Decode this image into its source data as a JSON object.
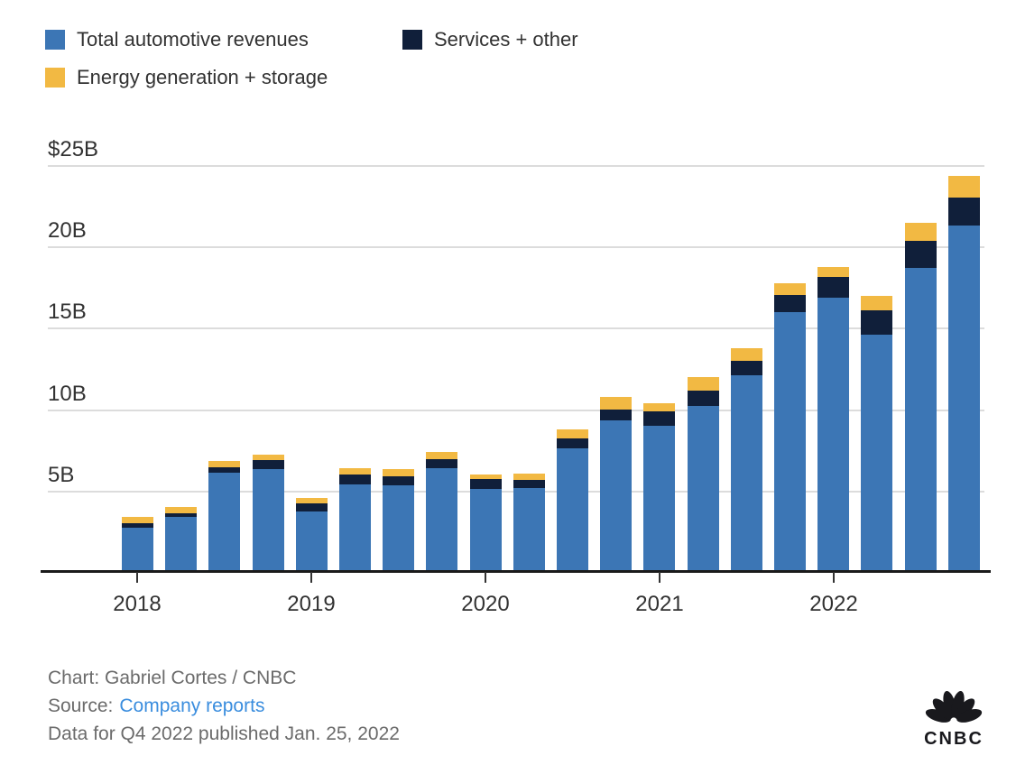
{
  "legend": {
    "items": [
      {
        "label": "Total automotive revenues",
        "color": "#3c76b5"
      },
      {
        "label": "Services + other",
        "color": "#101f3a"
      },
      {
        "label": "Energy generation + storage",
        "color": "#f2b943"
      }
    ]
  },
  "chart_data": {
    "type": "bar",
    "stacked": true,
    "unit": "USD billions",
    "categories": [
      "Q1 2018",
      "Q2 2018",
      "Q3 2018",
      "Q4 2018",
      "Q1 2019",
      "Q2 2019",
      "Q3 2019",
      "Q4 2019",
      "Q1 2020",
      "Q2 2020",
      "Q3 2020",
      "Q4 2020",
      "Q1 2021",
      "Q2 2021",
      "Q3 2021",
      "Q4 2021",
      "Q1 2022",
      "Q2 2022",
      "Q3 2022",
      "Q4 2022"
    ],
    "series": [
      {
        "name": "Total automotive revenues",
        "values": [
          2.74,
          3.36,
          6.1,
          6.32,
          3.72,
          5.38,
          5.35,
          6.37,
          5.13,
          5.18,
          7.61,
          9.31,
          9.0,
          10.21,
          12.06,
          15.97,
          16.86,
          14.6,
          18.69,
          21.31
        ]
      },
      {
        "name": "Services + other",
        "values": [
          0.26,
          0.27,
          0.33,
          0.53,
          0.49,
          0.61,
          0.55,
          0.58,
          0.56,
          0.49,
          0.58,
          0.68,
          0.89,
          0.95,
          0.89,
          1.06,
          1.28,
          1.47,
          1.65,
          1.7
        ]
      },
      {
        "name": "Energy generation + storage",
        "values": [
          0.41,
          0.37,
          0.4,
          0.37,
          0.33,
          0.37,
          0.4,
          0.44,
          0.29,
          0.37,
          0.58,
          0.75,
          0.49,
          0.8,
          0.81,
          0.69,
          0.62,
          0.87,
          1.12,
          1.31
        ]
      }
    ],
    "x_tick_labels": [
      "2018",
      "2019",
      "2020",
      "2021",
      "2022"
    ],
    "y_tick_labels": [
      "$25B",
      "20B",
      "15B",
      "10B",
      "5B"
    ],
    "ylim": [
      0,
      25
    ],
    "grid": "horizontal",
    "legend_position": "top-left"
  },
  "footer": {
    "credit": "Chart: Gabriel Cortes / CNBC",
    "source_label": "Source:",
    "source_link": "Company reports",
    "note": "Data for Q4 2022 published Jan. 25, 2022"
  },
  "logo": {
    "text": "CNBC"
  },
  "colors": {
    "automotive": "#3c76b5",
    "services": "#101f3a",
    "energy": "#f2b943",
    "gridline": "#dcdcdc",
    "axis": "#1a1a1a",
    "label_text": "#323232",
    "footer_text": "#6b6b6b",
    "link": "#3a8dde",
    "logo": "#19191d"
  }
}
